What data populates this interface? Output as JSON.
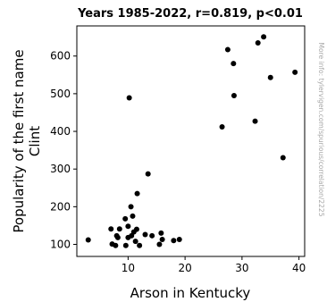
{
  "chart_data": {
    "type": "scatter",
    "title": "Years 1985-2022, r=0.819, p<0.01",
    "xlabel": "Arson in Kentucky",
    "ylabel_lines": [
      "Popularity of the first name",
      "Clint"
    ],
    "side_note": "More info: tylervigen.com/spurious/correlation/2225",
    "xlim": [
      1,
      41
    ],
    "ylim": [
      68,
      680
    ],
    "xticks": [
      10,
      20,
      30,
      40
    ],
    "yticks": [
      100,
      200,
      300,
      400,
      500,
      600
    ],
    "grid": false,
    "marker_color": "#000000",
    "points": [
      {
        "x": 3,
        "y": 112
      },
      {
        "x": 7,
        "y": 141
      },
      {
        "x": 7.2,
        "y": 101
      },
      {
        "x": 7.8,
        "y": 97
      },
      {
        "x": 8,
        "y": 123
      },
      {
        "x": 8.2,
        "y": 118
      },
      {
        "x": 8.5,
        "y": 141
      },
      {
        "x": 9.5,
        "y": 168
      },
      {
        "x": 9.6,
        "y": 97
      },
      {
        "x": 10,
        "y": 148
      },
      {
        "x": 10,
        "y": 118
      },
      {
        "x": 10.2,
        "y": 489
      },
      {
        "x": 10.5,
        "y": 200
      },
      {
        "x": 10.6,
        "y": 123
      },
      {
        "x": 10.8,
        "y": 175
      },
      {
        "x": 11,
        "y": 133
      },
      {
        "x": 11.3,
        "y": 108
      },
      {
        "x": 11.5,
        "y": 140
      },
      {
        "x": 11.6,
        "y": 235
      },
      {
        "x": 12,
        "y": 97
      },
      {
        "x": 13,
        "y": 126
      },
      {
        "x": 13.5,
        "y": 287
      },
      {
        "x": 14.2,
        "y": 123
      },
      {
        "x": 15.5,
        "y": 100
      },
      {
        "x": 15.8,
        "y": 130
      },
      {
        "x": 16,
        "y": 113
      },
      {
        "x": 18,
        "y": 110
      },
      {
        "x": 19,
        "y": 113
      },
      {
        "x": 26.5,
        "y": 412
      },
      {
        "x": 27.5,
        "y": 617
      },
      {
        "x": 28.5,
        "y": 580
      },
      {
        "x": 28.6,
        "y": 495
      },
      {
        "x": 32.3,
        "y": 427
      },
      {
        "x": 32.8,
        "y": 635
      },
      {
        "x": 33.8,
        "y": 651
      },
      {
        "x": 35,
        "y": 543
      },
      {
        "x": 37.2,
        "y": 330
      },
      {
        "x": 39.3,
        "y": 557
      }
    ]
  }
}
